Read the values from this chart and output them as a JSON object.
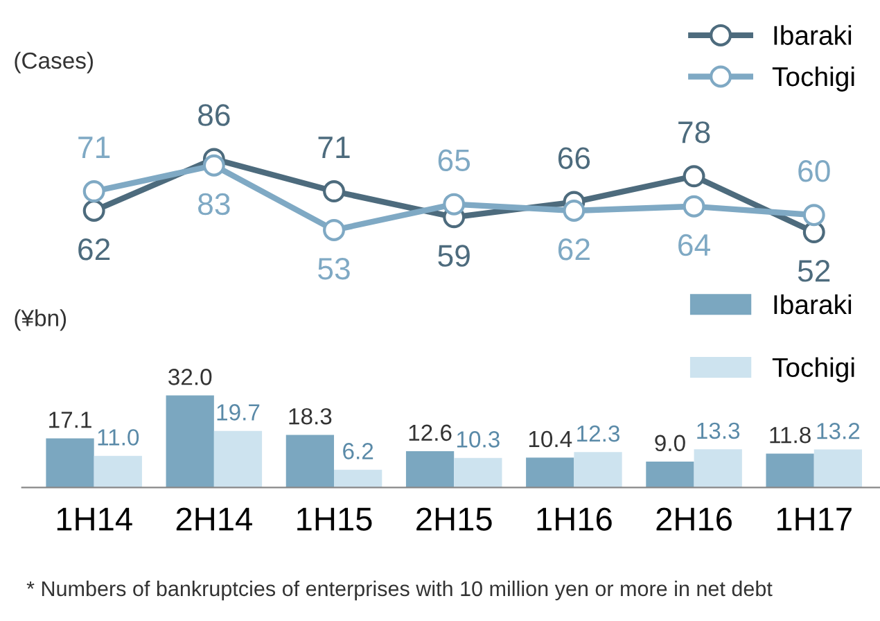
{
  "chart_data": [
    {
      "type": "line",
      "ylabel": "(Cases)",
      "categories": [
        null,
        null,
        null,
        null,
        null,
        null,
        null
      ],
      "tick_labels": false,
      "marker": "circle",
      "legend": "top right",
      "data_labels": true,
      "series": [
        {
          "name": "Ibaraki",
          "color": "#4d6b7d",
          "values": [
            62,
            86,
            71,
            59,
            66,
            78,
            52
          ]
        },
        {
          "name": "Tochigi",
          "color": "#7fa9c4",
          "values": [
            71,
            83,
            53,
            65,
            62,
            64,
            60
          ]
        }
      ]
    },
    {
      "type": "bar",
      "ylabel": "(¥bn)",
      "categories": [
        "1H14",
        "2H14",
        "1H15",
        "2H15",
        "1H16",
        "2H16",
        "1H17"
      ],
      "tick_labels": "x",
      "legend": "top right",
      "annotations": [
        "* Numbers of bankruptcies of enterprises with 10 million yen or more in net debt"
      ],
      "series": [
        {
          "name": "Ibaraki",
          "color": "#7ba7c0",
          "values": [
            17.1,
            32.0,
            18.3,
            12.6,
            10.4,
            9.0,
            11.8
          ],
          "value_labels": [
            "17.1",
            "32.0",
            "18.3",
            "12.6",
            "10.4",
            "9.0",
            "11.8"
          ]
        },
        {
          "name": "Tochigi",
          "color": "#cde3ef",
          "values": [
            11.0,
            19.7,
            6.2,
            10.3,
            12.3,
            13.3,
            13.2
          ],
          "value_labels": [
            "11.0",
            "19.7",
            "6.2",
            "10.3",
            "12.3",
            "13.3",
            "13.2"
          ]
        }
      ]
    }
  ]
}
